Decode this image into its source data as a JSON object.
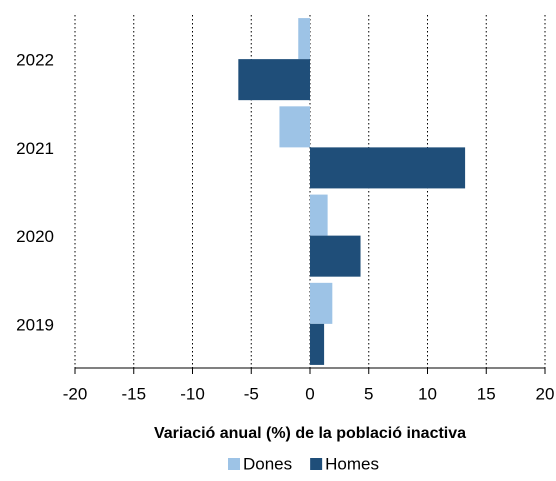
{
  "chart_data": {
    "type": "hbar",
    "xlabel": "Variació anual (%) de la població inactiva",
    "categories": [
      "2022",
      "2021",
      "2020",
      "2019"
    ],
    "series": [
      {
        "name": "Dones",
        "color": "#9dc3e6",
        "values": [
          -1.0,
          -2.6,
          1.5,
          1.9
        ]
      },
      {
        "name": "Homes",
        "color": "#1f4e79",
        "values": [
          -6.1,
          13.2,
          4.3,
          1.2
        ]
      }
    ],
    "xlim": [
      -20,
      20
    ],
    "xticks": [
      -20,
      -15,
      -10,
      -5,
      0,
      5,
      10,
      15,
      20
    ],
    "grid": true,
    "legend": "bottom"
  }
}
